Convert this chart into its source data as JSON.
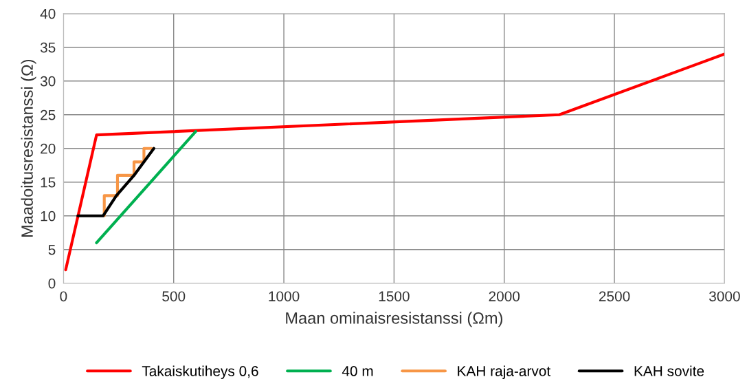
{
  "chart_data": {
    "type": "line",
    "xlabel": "Maan ominaisresistanssi (Ωm)",
    "ylabel": "Maadoitusresistanssi (Ω)",
    "xlim": [
      0,
      3000
    ],
    "xticks": [
      0,
      500,
      1000,
      1500,
      2000,
      2500,
      3000
    ],
    "ylim": [
      0,
      40
    ],
    "yticks": [
      0,
      5,
      10,
      15,
      20,
      25,
      30,
      35,
      40
    ],
    "grid": true,
    "legend": "bottom",
    "marker": "none",
    "series": [
      {
        "name": "Takaiskutiheys 0,6",
        "color": "#ff0000",
        "x": [
          10,
          150,
          2250,
          3000
        ],
        "values": [
          2,
          22,
          25,
          34
        ]
      },
      {
        "name": "40 m",
        "color": "#00b050",
        "x": [
          150,
          600
        ],
        "values": [
          6,
          22.5
        ]
      },
      {
        "name": "KAH raja-arvot",
        "color": "#f79646",
        "x": [
          185,
          185,
          245,
          245,
          320,
          320,
          365,
          365,
          400
        ],
        "values": [
          10,
          13,
          13,
          16,
          16,
          18,
          18,
          20,
          20
        ]
      },
      {
        "name": "KAH sovite",
        "color": "#000000",
        "x": [
          65,
          180,
          240,
          320,
          410
        ],
        "values": [
          10,
          10,
          13,
          16,
          20
        ]
      }
    ]
  }
}
